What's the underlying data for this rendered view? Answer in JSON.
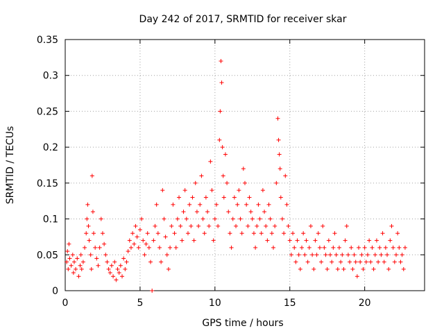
{
  "chart_data": {
    "type": "scatter",
    "title": "Day 242 of 2017, SRMTID for receiver skar",
    "xlabel": "GPS time / hours",
    "ylabel": "SRMTID / TECUs",
    "xlim": [
      0,
      24
    ],
    "ylim": [
      0,
      0.35
    ],
    "xticks": [
      0,
      5,
      10,
      15,
      20
    ],
    "xtick_labels": [
      "0",
      "5",
      "10",
      "15",
      "20"
    ],
    "yticks": [
      0,
      0.05,
      0.1,
      0.15,
      0.2,
      0.25,
      0.3,
      0.35
    ],
    "ytick_labels": [
      "0",
      "0.05",
      "0.1",
      "0.15",
      "0.2",
      "0.25",
      "0.3",
      "0.35"
    ],
    "grid": true,
    "marker": "+",
    "color": "#ff0000",
    "series": [
      {
        "name": "SRMTID",
        "points": [
          [
            0.1,
            0.04
          ],
          [
            0.15,
            0.055
          ],
          [
            0.2,
            0.03
          ],
          [
            0.25,
            0.065
          ],
          [
            0.3,
            0.045
          ],
          [
            0.4,
            0.035
          ],
          [
            0.5,
            0.05
          ],
          [
            0.55,
            0.025
          ],
          [
            0.6,
            0.04
          ],
          [
            0.7,
            0.03
          ],
          [
            0.8,
            0.045
          ],
          [
            0.9,
            0.02
          ],
          [
            1.0,
            0.035
          ],
          [
            1.05,
            0.05
          ],
          [
            1.1,
            0.03
          ],
          [
            1.2,
            0.04
          ],
          [
            1.3,
            0.06
          ],
          [
            1.4,
            0.08
          ],
          [
            1.45,
            0.1
          ],
          [
            1.5,
            0.12
          ],
          [
            1.55,
            0.09
          ],
          [
            1.6,
            0.07
          ],
          [
            1.7,
            0.05
          ],
          [
            1.75,
            0.03
          ],
          [
            1.8,
            0.16
          ],
          [
            1.85,
            0.11
          ],
          [
            1.9,
            0.08
          ],
          [
            2.0,
            0.06
          ],
          [
            2.1,
            0.045
          ],
          [
            2.2,
            0.035
          ],
          [
            2.3,
            0.06
          ],
          [
            2.4,
            0.1
          ],
          [
            2.5,
            0.08
          ],
          [
            2.6,
            0.065
          ],
          [
            2.7,
            0.05
          ],
          [
            2.8,
            0.04
          ],
          [
            2.9,
            0.03
          ],
          [
            3.0,
            0.025
          ],
          [
            3.1,
            0.035
          ],
          [
            3.2,
            0.02
          ],
          [
            3.3,
            0.04
          ],
          [
            3.4,
            0.015
          ],
          [
            3.5,
            0.03
          ],
          [
            3.6,
            0.025
          ],
          [
            3.7,
            0.035
          ],
          [
            3.8,
            0.02
          ],
          [
            3.9,
            0.045
          ],
          [
            4.0,
            0.03
          ],
          [
            4.1,
            0.04
          ],
          [
            4.2,
            0.055
          ],
          [
            4.3,
            0.07
          ],
          [
            4.4,
            0.06
          ],
          [
            4.5,
            0.08
          ],
          [
            4.6,
            0.065
          ],
          [
            4.7,
            0.09
          ],
          [
            4.8,
            0.075
          ],
          [
            4.9,
            0.06
          ],
          [
            5.0,
            0.085
          ],
          [
            5.1,
            0.1
          ],
          [
            5.2,
            0.07
          ],
          [
            5.3,
            0.05
          ],
          [
            5.4,
            0.065
          ],
          [
            5.5,
            0.08
          ],
          [
            5.6,
            0.06
          ],
          [
            5.7,
            0.04
          ],
          [
            5.8,
            0.0
          ],
          [
            5.9,
            0.07
          ],
          [
            6.0,
            0.09
          ],
          [
            6.1,
            0.12
          ],
          [
            6.2,
            0.08
          ],
          [
            6.3,
            0.06
          ],
          [
            6.4,
            0.04
          ],
          [
            6.5,
            0.14
          ],
          [
            6.6,
            0.1
          ],
          [
            6.7,
            0.075
          ],
          [
            6.8,
            0.05
          ],
          [
            6.9,
            0.03
          ],
          [
            7.0,
            0.06
          ],
          [
            7.1,
            0.09
          ],
          [
            7.2,
            0.12
          ],
          [
            7.3,
            0.08
          ],
          [
            7.4,
            0.06
          ],
          [
            7.5,
            0.1
          ],
          [
            7.6,
            0.13
          ],
          [
            7.7,
            0.09
          ],
          [
            7.8,
            0.07
          ],
          [
            7.9,
            0.11
          ],
          [
            8.0,
            0.14
          ],
          [
            8.1,
            0.1
          ],
          [
            8.2,
            0.08
          ],
          [
            8.3,
            0.12
          ],
          [
            8.4,
            0.09
          ],
          [
            8.5,
            0.13
          ],
          [
            8.6,
            0.07
          ],
          [
            8.7,
            0.15
          ],
          [
            8.8,
            0.11
          ],
          [
            8.9,
            0.09
          ],
          [
            9.0,
            0.12
          ],
          [
            9.1,
            0.16
          ],
          [
            9.2,
            0.1
          ],
          [
            9.3,
            0.08
          ],
          [
            9.4,
            0.13
          ],
          [
            9.5,
            0.11
          ],
          [
            9.6,
            0.09
          ],
          [
            9.7,
            0.18
          ],
          [
            9.8,
            0.14
          ],
          [
            9.9,
            0.07
          ],
          [
            10.0,
            0.1
          ],
          [
            10.1,
            0.12
          ],
          [
            10.2,
            0.09
          ],
          [
            10.3,
            0.21
          ],
          [
            10.35,
            0.25
          ],
          [
            10.4,
            0.32
          ],
          [
            10.45,
            0.29
          ],
          [
            10.5,
            0.2
          ],
          [
            10.55,
            0.16
          ],
          [
            10.6,
            0.13
          ],
          [
            10.7,
            0.19
          ],
          [
            10.8,
            0.15
          ],
          [
            10.9,
            0.11
          ],
          [
            11.0,
            0.08
          ],
          [
            11.1,
            0.06
          ],
          [
            11.2,
            0.1
          ],
          [
            11.3,
            0.13
          ],
          [
            11.4,
            0.09
          ],
          [
            11.5,
            0.12
          ],
          [
            11.6,
            0.14
          ],
          [
            11.7,
            0.1
          ],
          [
            11.8,
            0.08
          ],
          [
            11.9,
            0.17
          ],
          [
            12.0,
            0.15
          ],
          [
            12.1,
            0.12
          ],
          [
            12.2,
            0.09
          ],
          [
            12.3,
            0.13
          ],
          [
            12.4,
            0.11
          ],
          [
            12.5,
            0.1
          ],
          [
            12.6,
            0.08
          ],
          [
            12.7,
            0.06
          ],
          [
            12.8,
            0.09
          ],
          [
            12.9,
            0.12
          ],
          [
            13.0,
            0.1
          ],
          [
            13.1,
            0.08
          ],
          [
            13.2,
            0.14
          ],
          [
            13.3,
            0.11
          ],
          [
            13.4,
            0.09
          ],
          [
            13.5,
            0.07
          ],
          [
            13.6,
            0.12
          ],
          [
            13.7,
            0.1
          ],
          [
            13.8,
            0.08
          ],
          [
            13.9,
            0.06
          ],
          [
            14.0,
            0.09
          ],
          [
            14.1,
            0.15
          ],
          [
            14.2,
            0.24
          ],
          [
            14.25,
            0.21
          ],
          [
            14.3,
            0.19
          ],
          [
            14.35,
            0.17
          ],
          [
            14.4,
            0.13
          ],
          [
            14.5,
            0.1
          ],
          [
            14.6,
            0.08
          ],
          [
            14.7,
            0.16
          ],
          [
            14.8,
            0.12
          ],
          [
            14.9,
            0.09
          ],
          [
            15.0,
            0.07
          ],
          [
            15.1,
            0.05
          ],
          [
            15.2,
            0.08
          ],
          [
            15.3,
            0.06
          ],
          [
            15.4,
            0.04
          ],
          [
            15.5,
            0.07
          ],
          [
            15.6,
            0.05
          ],
          [
            15.7,
            0.03
          ],
          [
            15.8,
            0.06
          ],
          [
            15.9,
            0.08
          ],
          [
            16.0,
            0.05
          ],
          [
            16.1,
            0.07
          ],
          [
            16.2,
            0.04
          ],
          [
            16.3,
            0.06
          ],
          [
            16.4,
            0.09
          ],
          [
            16.5,
            0.05
          ],
          [
            16.6,
            0.03
          ],
          [
            16.7,
            0.07
          ],
          [
            16.8,
            0.05
          ],
          [
            16.9,
            0.08
          ],
          [
            17.0,
            0.06
          ],
          [
            17.1,
            0.04
          ],
          [
            17.2,
            0.09
          ],
          [
            17.3,
            0.06
          ],
          [
            17.4,
            0.05
          ],
          [
            17.5,
            0.03
          ],
          [
            17.6,
            0.07
          ],
          [
            17.7,
            0.05
          ],
          [
            17.8,
            0.04
          ],
          [
            17.9,
            0.06
          ],
          [
            18.0,
            0.08
          ],
          [
            18.1,
            0.05
          ],
          [
            18.2,
            0.03
          ],
          [
            18.3,
            0.06
          ],
          [
            18.4,
            0.04
          ],
          [
            18.5,
            0.05
          ],
          [
            18.6,
            0.03
          ],
          [
            18.7,
            0.07
          ],
          [
            18.8,
            0.09
          ],
          [
            18.9,
            0.05
          ],
          [
            19.0,
            0.04
          ],
          [
            19.1,
            0.06
          ],
          [
            19.2,
            0.03
          ],
          [
            19.3,
            0.05
          ],
          [
            19.4,
            0.04
          ],
          [
            19.5,
            0.02
          ],
          [
            19.6,
            0.06
          ],
          [
            19.7,
            0.04
          ],
          [
            19.8,
            0.05
          ],
          [
            19.9,
            0.03
          ],
          [
            20.0,
            0.06
          ],
          [
            20.1,
            0.04
          ],
          [
            20.2,
            0.05
          ],
          [
            20.3,
            0.07
          ],
          [
            20.4,
            0.04
          ],
          [
            20.5,
            0.06
          ],
          [
            20.6,
            0.03
          ],
          [
            20.7,
            0.05
          ],
          [
            20.8,
            0.07
          ],
          [
            20.9,
            0.04
          ],
          [
            21.0,
            0.06
          ],
          [
            21.1,
            0.05
          ],
          [
            21.2,
            0.08
          ],
          [
            21.3,
            0.04
          ],
          [
            21.4,
            0.06
          ],
          [
            21.5,
            0.05
          ],
          [
            21.6,
            0.03
          ],
          [
            21.7,
            0.07
          ],
          [
            21.8,
            0.09
          ],
          [
            21.9,
            0.06
          ],
          [
            22.0,
            0.04
          ],
          [
            22.1,
            0.05
          ],
          [
            22.2,
            0.08
          ],
          [
            22.3,
            0.06
          ],
          [
            22.4,
            0.04
          ],
          [
            22.5,
            0.05
          ],
          [
            22.6,
            0.03
          ],
          [
            22.7,
            0.06
          ]
        ]
      }
    ]
  }
}
